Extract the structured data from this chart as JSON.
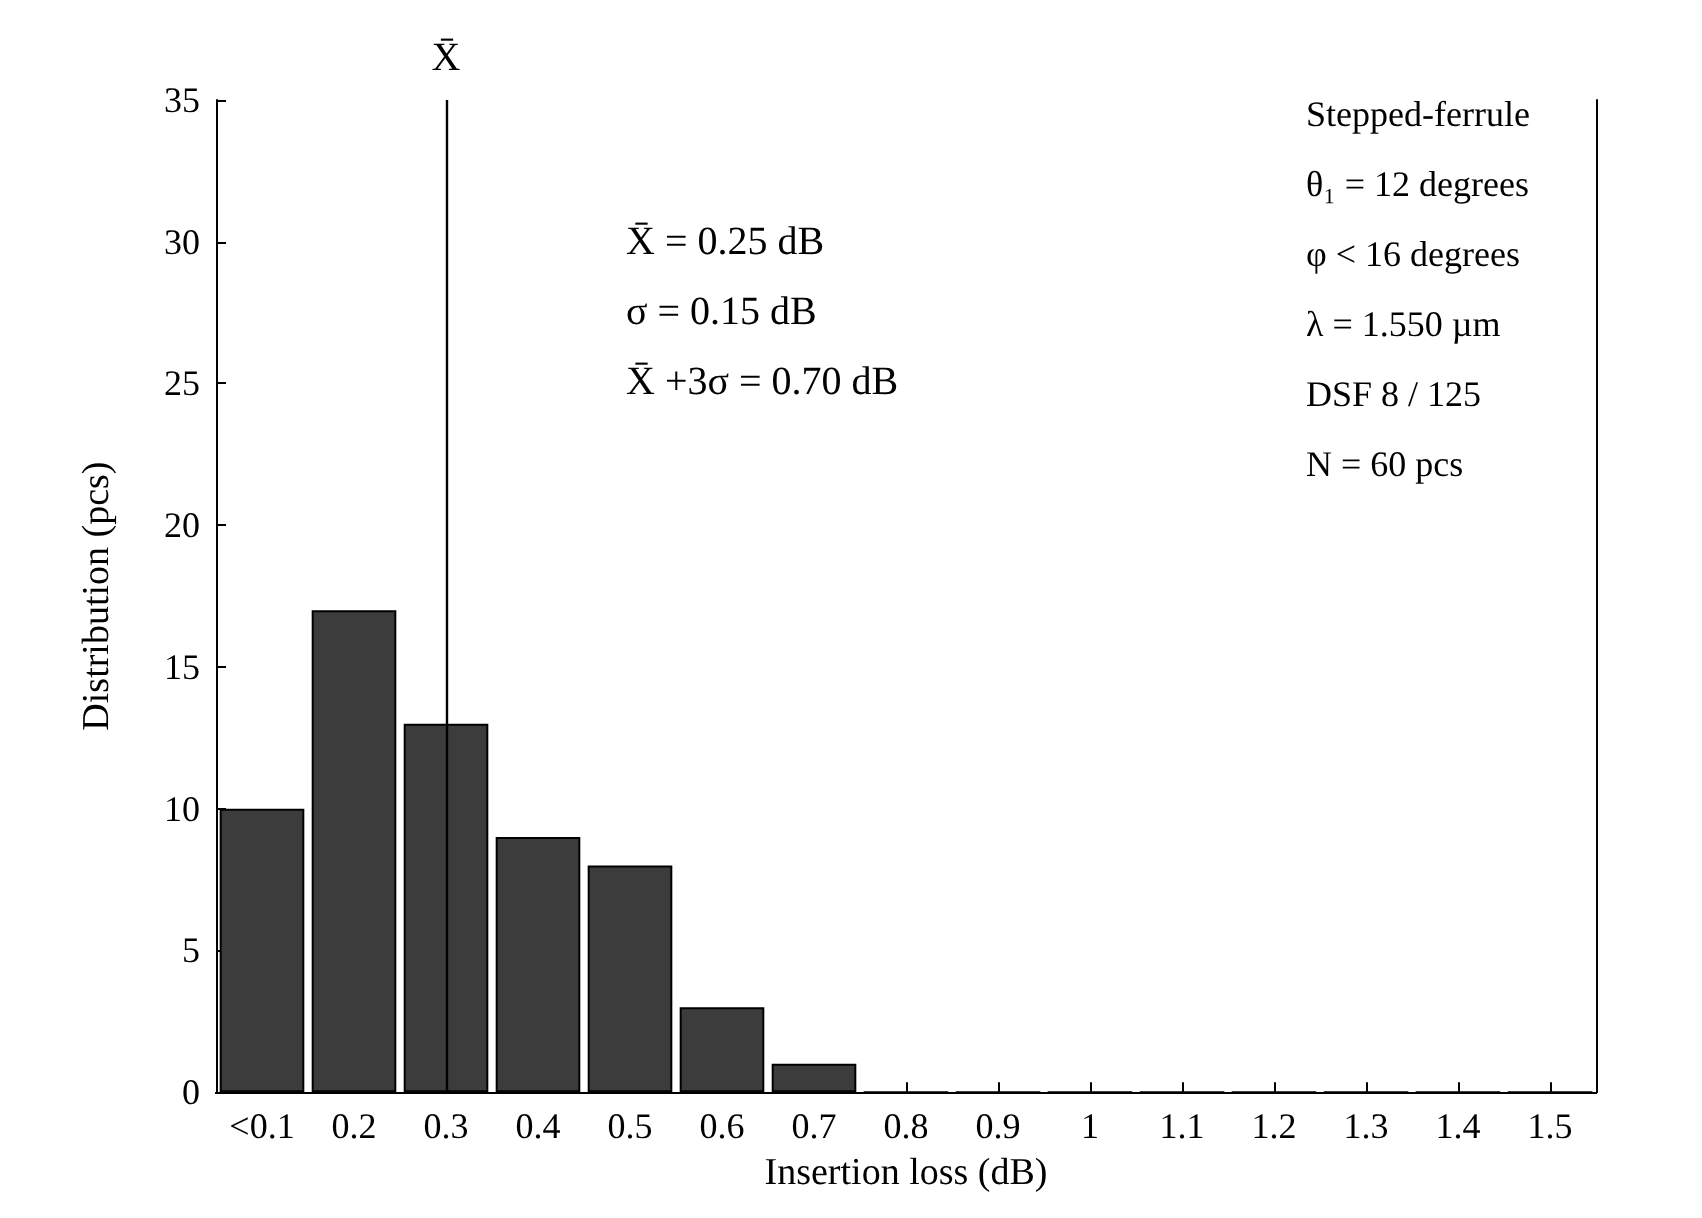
{
  "chart_data": {
    "type": "bar",
    "xlabel": "Insertion loss (dB)",
    "ylabel": "Distribution (pcs)",
    "categories": [
      "<0.1",
      "0.2",
      "0.3",
      "0.4",
      "0.5",
      "0.6",
      "0.7",
      "0.8",
      "0.9",
      "1",
      "1.1",
      "1.2",
      "1.3",
      "1.4",
      "1.5"
    ],
    "values": [
      10,
      17,
      13,
      9,
      8,
      3,
      1,
      0,
      0,
      0,
      0,
      0,
      0,
      0,
      0
    ],
    "color": "#3c3c3c",
    "ylim": [
      0,
      35
    ],
    "yticks": [
      0,
      5,
      10,
      15,
      20,
      25,
      30,
      35
    ],
    "grid": false,
    "ref_lines": [
      {
        "axis": "x",
        "value": "0.3",
        "label": "X̄",
        "color": "#000000"
      }
    ],
    "annotations": [
      "X̄ = 0.25 dB",
      "σ = 0.15 dB",
      "X̄ +3σ = 0.70 dB",
      "Stepped-ferrule",
      "θ₁ = 12 degrees",
      "φ < 16 degrees",
      "λ = 1.550 µm",
      "DSF 8 / 125",
      "N = 60 pcs"
    ]
  }
}
